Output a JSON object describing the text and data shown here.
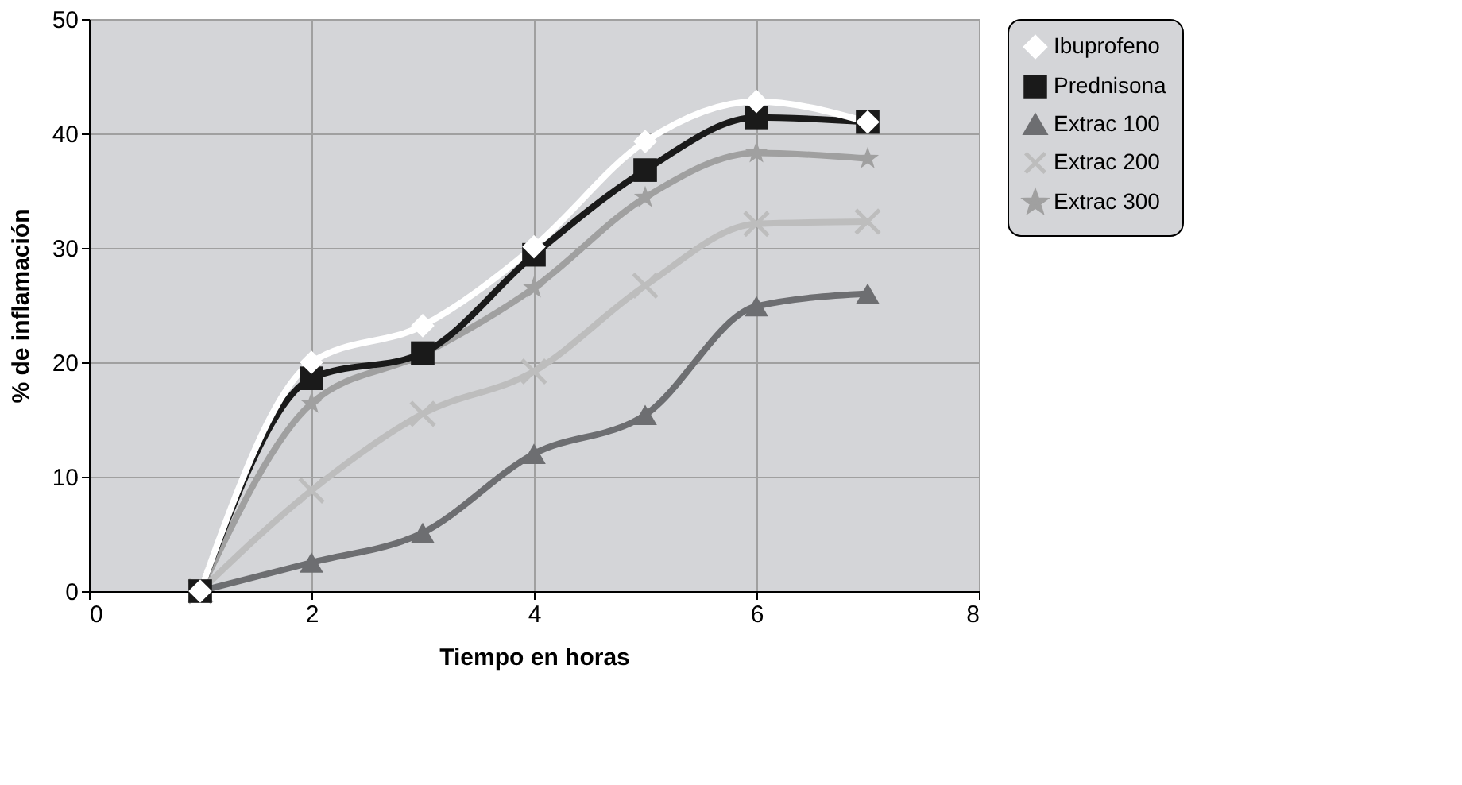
{
  "chart_data": {
    "type": "line",
    "xlabel": "Tiempo en horas",
    "ylabel": "% de inflamación",
    "x": [
      1,
      2,
      3,
      4,
      5,
      6,
      7
    ],
    "xlim": [
      0,
      8
    ],
    "xticks": [
      0,
      2,
      4,
      6,
      8
    ],
    "ylim": [
      0,
      50
    ],
    "yticks": [
      0,
      10,
      20,
      30,
      40,
      50
    ],
    "grid": true,
    "legend": "right",
    "series": [
      {
        "name": "Ibuprofeno",
        "color": "#ffffff",
        "marker": "diamond",
        "values": [
          0,
          20,
          23.2,
          30.1,
          39.3,
          42.8,
          41
        ]
      },
      {
        "name": "Prednisona",
        "color": "#1a1a1a",
        "marker": "square",
        "values": [
          0,
          18.6,
          20.8,
          29.4,
          36.8,
          41.4,
          41
        ]
      },
      {
        "name": "Extrac 100",
        "color": "#6d6e71",
        "marker": "triangle",
        "values": [
          0,
          2.5,
          5.1,
          12,
          15.4,
          24.9,
          26
        ]
      },
      {
        "name": "Extrac 200",
        "color": "#bdbdbd",
        "marker": "cross",
        "values": [
          0,
          8.8,
          15.5,
          19.2,
          26.7,
          32.1,
          32.3
        ]
      },
      {
        "name": "Extrac 300",
        "color": "#a0a0a0",
        "marker": "star",
        "values": [
          0,
          16.4,
          20.7,
          26.5,
          34.4,
          38.3,
          37.8
        ]
      }
    ]
  }
}
